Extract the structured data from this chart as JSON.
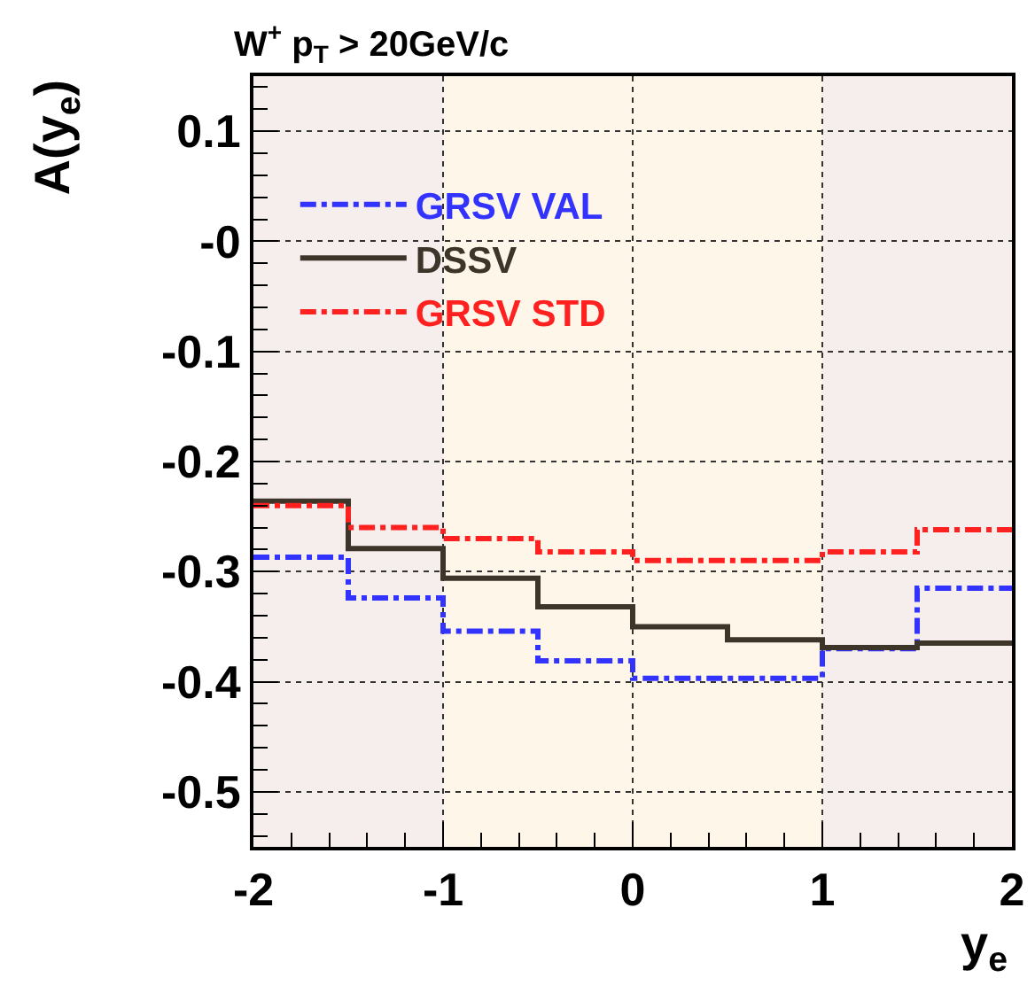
{
  "chart_data": {
    "type": "step",
    "title": "W$^{+}$ p$_{T}$ > 20GeV/c",
    "xlabel": "y$_{e}$",
    "ylabel": "A(y$_{e}$)",
    "x": [
      -2,
      -1.5,
      -1,
      -0.5,
      0,
      0.5,
      1,
      1.5,
      2
    ],
    "series": [
      {
        "name": "GRSV VAL",
        "color": "#3333ff",
        "line_style": "dashdot",
        "values": [
          -0.287,
          -0.324,
          -0.354,
          -0.381,
          -0.397,
          -0.397,
          -0.37,
          -0.315,
          -0.315
        ]
      },
      {
        "name": "DSSV",
        "color": "#3d3529",
        "line_style": "solid",
        "values": [
          -0.236,
          -0.279,
          -0.306,
          -0.332,
          -0.35,
          -0.362,
          -0.369,
          -0.365,
          -0.365
        ]
      },
      {
        "name": "GRSV STD",
        "color": "#ff2020",
        "line_style": "dashdot",
        "values": [
          -0.24,
          -0.26,
          -0.27,
          -0.282,
          -0.29,
          -0.29,
          -0.282,
          -0.262,
          -0.262
        ]
      }
    ],
    "xlim": [
      -2,
      2
    ],
    "ylim": [
      -0.55,
      0.15
    ],
    "xticks": [
      -2,
      -1,
      0,
      1,
      2
    ],
    "yticks": [
      0.1,
      {
        "value": 0,
        "label": "-0"
      },
      -0.1,
      -0.2,
      -0.3,
      -0.4,
      -0.5
    ],
    "bands": [
      {
        "axis": "x",
        "from": -2,
        "to": -1,
        "color": "#f6eded"
      },
      {
        "axis": "x",
        "from": -1,
        "to": 1,
        "color": "#fdf6e9"
      },
      {
        "axis": "x",
        "from": 1,
        "to": 2,
        "color": "#f6eded"
      }
    ],
    "grid": true,
    "legend": "top left"
  }
}
